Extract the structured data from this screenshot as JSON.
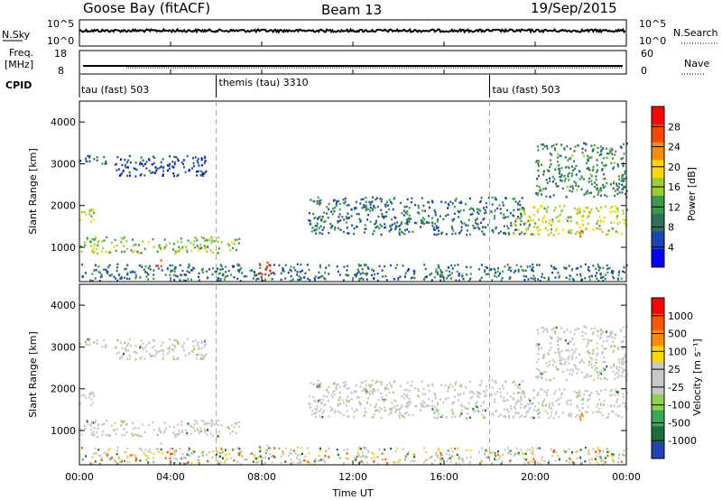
{
  "header": {
    "station": "Goose Bay (fitACF)",
    "beam": "Beam 13",
    "date": "19/Sep/2015"
  },
  "noise_panel": {
    "left_label": "N.Sky",
    "left_ticks": [
      "10^5",
      "10^0"
    ],
    "right_label": "N.Search",
    "right_ticks": [
      "10^5",
      "10^0"
    ]
  },
  "freq_panel": {
    "left_label_1": "Freq.",
    "left_label_2": "[MHz]",
    "left_ticks": [
      "18",
      "8"
    ],
    "right_label": "Nave",
    "right_ticks": [
      "60",
      "0"
    ]
  },
  "cpid": {
    "label": "CPID",
    "segments": [
      {
        "name": "tau (fast) 503",
        "start_hour": 0
      },
      {
        "name": "themis (tau) 3310",
        "start_hour": 6
      },
      {
        "name": "tau (fast) 503",
        "start_hour": 18
      }
    ]
  },
  "power_panel": {
    "ylabel": "Slant Range [km]",
    "colorbar_label": "Power [dB]",
    "colorbar_ticks": [
      "28",
      "24",
      "20",
      "16",
      "12",
      "8",
      "4"
    ],
    "colors": [
      "#0000ff",
      "#1a44b8",
      "#2e6f5a",
      "#3a9a4a",
      "#9acd32",
      "#ffd700",
      "#ff8c00",
      "#ff4500",
      "#ff0000"
    ]
  },
  "velocity_panel": {
    "ylabel": "Slant Range [km]",
    "colorbar_label": "Velocity [m s⁻¹]",
    "colorbar_ticks": [
      "1000",
      "500",
      "100",
      "25",
      "-25",
      "-100",
      "-500",
      "-1000"
    ],
    "colors": [
      "#2244bb",
      "#1b6e3c",
      "#3aa85a",
      "#8fd14f",
      "#c8c8c8",
      "#c8c8c8",
      "#ffd700",
      "#ff8c00",
      "#ff5500",
      "#ff0000"
    ]
  },
  "x_axis": {
    "label": "Time UT",
    "ticks": [
      "00:00",
      "04:00",
      "08:00",
      "12:00",
      "16:00",
      "20:00",
      "00:00"
    ]
  },
  "chart_data": {
    "type": "heatmap",
    "title": "Goose Bay (fitACF)   Beam 13   19/Sep/2015",
    "xlabel": "Time UT",
    "ylabel": "Slant Range [km]",
    "xlim_hours": [
      0,
      24
    ],
    "ylim_km": [
      180,
      4500
    ],
    "y_ticks": [
      1000,
      2000,
      3000,
      4000
    ],
    "grid": false,
    "scatter_bands_power": [
      {
        "label": "early-high",
        "t": [
          0.0,
          1.3
        ],
        "r0": 3000,
        "r1": 3200,
        "db": 8
      },
      {
        "label": "arc",
        "t": [
          1.5,
          5.6
        ],
        "r0": 2700,
        "r1": 3200,
        "db": 6
      },
      {
        "label": "left-mid",
        "t": [
          0.0,
          0.6
        ],
        "r0": 1600,
        "r1": 2000,
        "db": 16
      },
      {
        "label": "band-1000",
        "t": [
          0.0,
          7.0
        ],
        "r0": 850,
        "r1": 1250,
        "db": 14
      },
      {
        "label": "low-ground",
        "t": [
          0.0,
          24.0
        ],
        "r0": 200,
        "r1": 600,
        "db": 8
      },
      {
        "label": "hotspot-0830",
        "t": [
          7.8,
          8.4
        ],
        "r0": 350,
        "r1": 650,
        "db": 28
      },
      {
        "label": "hotspot-0340",
        "t": [
          3.3,
          3.7
        ],
        "r0": 550,
        "r1": 700,
        "db": 22
      },
      {
        "label": "evening-arc",
        "t": [
          10.0,
          19.5
        ],
        "r0": 1300,
        "r1": 2200,
        "db": 8
      },
      {
        "label": "late-band",
        "t": [
          19.0,
          24.0
        ],
        "r0": 1300,
        "r1": 2000,
        "db": 16
      },
      {
        "label": "late-high",
        "t": [
          20.0,
          24.0
        ],
        "r0": 2200,
        "r1": 3500,
        "db": 10
      },
      {
        "label": "hotspot-2200",
        "t": [
          21.8,
          22.2
        ],
        "r0": 1250,
        "r1": 1400,
        "db": 26
      }
    ],
    "power_scale_db": [
      0,
      30
    ],
    "velocity_scale_ms": [
      -1000,
      1000
    ]
  }
}
